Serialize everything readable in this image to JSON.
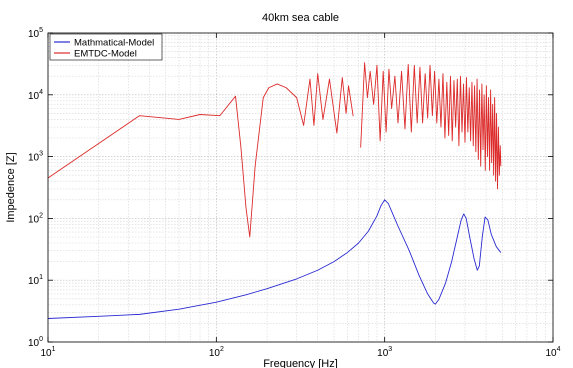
{
  "chart_data": {
    "type": "line",
    "title": "40km sea cable",
    "xlabel": "Frequency [Hz]",
    "ylabel": "Impedence [Z]",
    "xscale": "log",
    "yscale": "log",
    "xlim": [
      10,
      10000
    ],
    "ylim": [
      1,
      100000
    ],
    "x_ticks": [
      {
        "base": "10",
        "exp": "1"
      },
      {
        "base": "10",
        "exp": "2"
      },
      {
        "base": "10",
        "exp": "3"
      },
      {
        "base": "10",
        "exp": "4"
      }
    ],
    "y_ticks": [
      {
        "base": "10",
        "exp": "0"
      },
      {
        "base": "10",
        "exp": "1"
      },
      {
        "base": "10",
        "exp": "2"
      },
      {
        "base": "10",
        "exp": "3"
      },
      {
        "base": "10",
        "exp": "4"
      },
      {
        "base": "10",
        "exp": "5"
      }
    ],
    "grid": true,
    "legend_position": "top-left",
    "series": [
      {
        "name": "Mathmatical-Model",
        "color": "#2a2ad2",
        "x": [
          10,
          20,
          35,
          60,
          100,
          150,
          200,
          300,
          400,
          500,
          600,
          700,
          800,
          900,
          950,
          1000,
          1050,
          1100,
          1200,
          1400,
          1600,
          1800,
          1950,
          2000,
          2100,
          2300,
          2500,
          2700,
          2850,
          2950,
          3050,
          3200,
          3400,
          3550,
          3650,
          3800,
          3950,
          4100,
          4300,
          4600,
          4900
        ],
        "y": [
          2.4,
          2.6,
          2.8,
          3.4,
          4.4,
          5.8,
          7.3,
          10.5,
          14.5,
          20,
          28,
          40,
          62,
          110,
          160,
          200,
          175,
          130,
          75,
          30,
          12,
          6,
          4.3,
          4.1,
          4.9,
          9,
          20,
          50,
          95,
          118,
          100,
          50,
          22,
          14.5,
          17,
          50,
          105,
          95,
          55,
          35,
          28
        ]
      },
      {
        "name": "EMTDC-Model",
        "color": "#dd2a2a",
        "x": [
          10,
          35,
          60,
          80,
          105,
          130,
          140,
          150,
          158,
          170,
          190,
          205,
          230,
          260,
          300,
          330,
          360,
          380,
          400,
          430,
          470,
          520,
          560,
          590,
          610,
          650
        ],
        "y": [
          450,
          4600,
          4000,
          4800,
          4600,
          9500,
          1400,
          150,
          50,
          700,
          9000,
          13000,
          15000,
          13000,
          9000,
          3200,
          18000,
          3200,
          22000,
          4000,
          18000,
          2400,
          19000,
          5000,
          14000,
          4500
        ],
        "x2": [
          720,
          760,
          790,
          820,
          860,
          900,
          940,
          980,
          1020,
          1060,
          1100,
          1150,
          1200,
          1260,
          1320,
          1380,
          1440,
          1500,
          1560,
          1620,
          1680,
          1740,
          1800,
          1860,
          1920,
          1980,
          2040,
          2100,
          2160,
          2220,
          2280,
          2340,
          2400,
          2460,
          2520,
          2580,
          2640,
          2700,
          2760,
          2820,
          2880,
          2940,
          3000,
          3060,
          3120,
          3180,
          3240,
          3300,
          3360,
          3420,
          3480,
          3540,
          3600,
          3660,
          3720,
          3780,
          3840,
          3900,
          3960,
          4020,
          4080,
          4140,
          4200,
          4260,
          4320,
          4380,
          4440,
          4500,
          4560,
          4620,
          4680,
          4740,
          4800,
          4860,
          4900
        ],
        "y2": [
          1400,
          33000,
          9000,
          24000,
          7000,
          30000,
          1800,
          24000,
          2500,
          26000,
          6000,
          20000,
          3500,
          24000,
          2800,
          31000,
          2500,
          30000,
          3500,
          28000,
          3500,
          22000,
          4200,
          30000,
          4600,
          24000,
          3500,
          18000,
          3000,
          22000,
          2000,
          16000,
          2200,
          20000,
          1800,
          17000,
          3000,
          18000,
          1500,
          20000,
          2500,
          15000,
          1700,
          19000,
          2500,
          13000,
          1800,
          16000,
          1500,
          14000,
          1200,
          18000,
          900,
          12000,
          700,
          15000,
          1300,
          10000,
          600,
          14000,
          1000,
          9000,
          600,
          12000,
          800,
          7000,
          500,
          9000,
          400,
          5000,
          300,
          3000,
          500,
          1500,
          700
        ]
      }
    ]
  }
}
